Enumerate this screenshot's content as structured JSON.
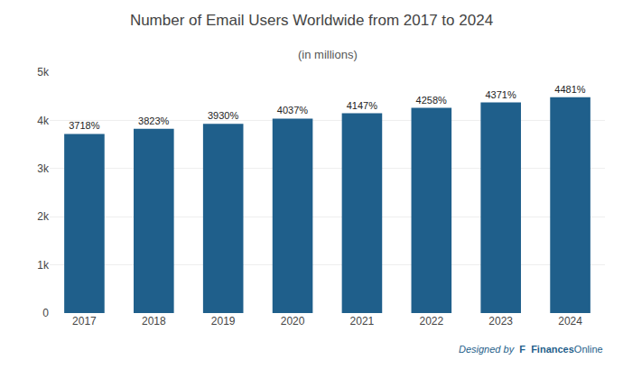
{
  "chart_data": {
    "type": "bar",
    "title": "Number of Email Users Worldwide from 2017 to 2024",
    "subtitle": "(in millions)",
    "categories": [
      "2017",
      "2018",
      "2019",
      "2020",
      "2021",
      "2022",
      "2023",
      "2024"
    ],
    "values": [
      3718,
      3823,
      3930,
      4037,
      4147,
      4258,
      4371,
      4481
    ],
    "value_labels": [
      "3718%",
      "3823%",
      "3930%",
      "4037%",
      "4147%",
      "4258%",
      "4371%",
      "4481%"
    ],
    "data_labels": true,
    "color": "#1f5f8b",
    "ylim": [
      0,
      5000
    ],
    "yticks": [
      0,
      {
        "value": 1000,
        "label": "1k"
      },
      {
        "value": 2000,
        "label": "2k"
      },
      {
        "value": 3000,
        "label": "3k"
      },
      {
        "value": 4000,
        "label": "4k"
      },
      {
        "value": 5000,
        "label": "5k"
      }
    ],
    "grid": true,
    "annotations": [
      "Designed by",
      "F",
      "Finances",
      "Online"
    ]
  }
}
